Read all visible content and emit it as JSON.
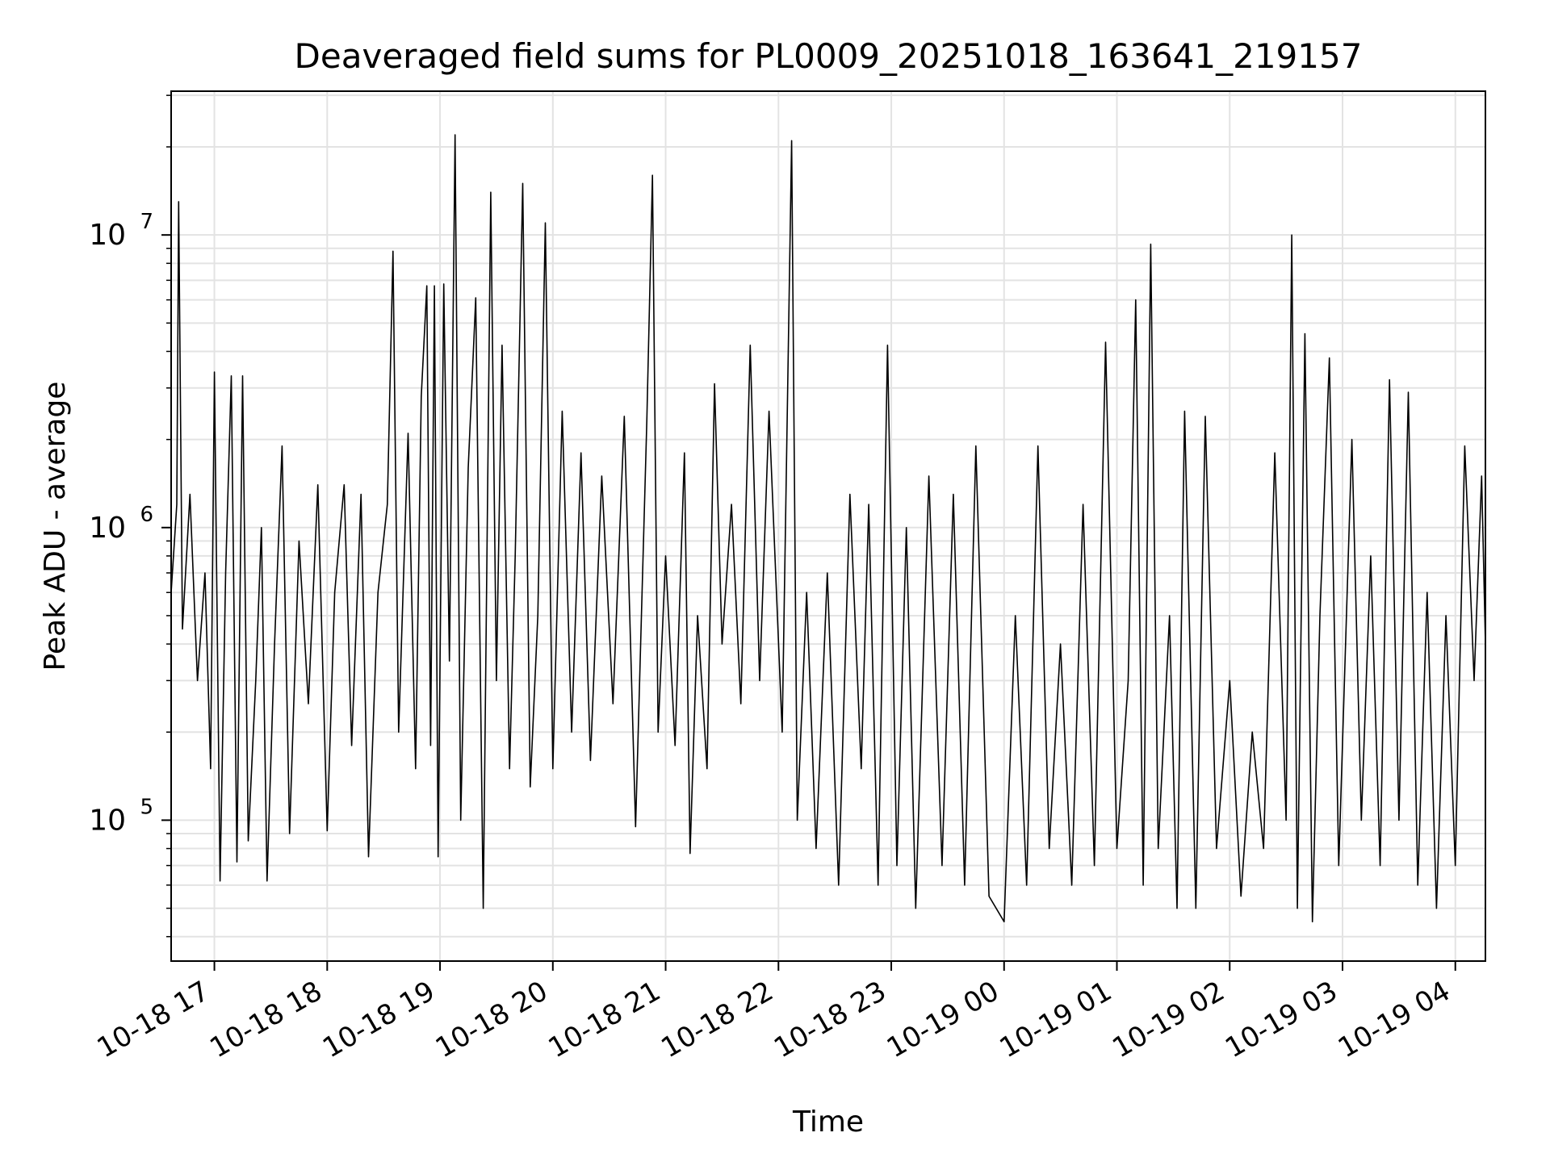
{
  "chart_data": {
    "type": "line",
    "title": "Deaveraged field sums for PL0009_20251018_163641_219157",
    "xlabel": "Time",
    "ylabel": "Peak ADU - average",
    "yscale": "log",
    "ylim": [
      33000,
      31000000
    ],
    "xlim": [
      "2025-10-18 16:37",
      "2025-10-19 04:16"
    ],
    "grid": true,
    "x_ticks": [
      {
        "time": "2025-10-18 17:00",
        "label": "10-18 17"
      },
      {
        "time": "2025-10-18 18:00",
        "label": "10-18 18"
      },
      {
        "time": "2025-10-18 19:00",
        "label": "10-18 19"
      },
      {
        "time": "2025-10-18 20:00",
        "label": "10-18 20"
      },
      {
        "time": "2025-10-18 21:00",
        "label": "10-18 21"
      },
      {
        "time": "2025-10-18 22:00",
        "label": "10-18 22"
      },
      {
        "time": "2025-10-18 23:00",
        "label": "10-18 23"
      },
      {
        "time": "2025-10-19 00:00",
        "label": "10-19 00"
      },
      {
        "time": "2025-10-19 01:00",
        "label": "10-19 01"
      },
      {
        "time": "2025-10-19 02:00",
        "label": "10-19 02"
      },
      {
        "time": "2025-10-19 03:00",
        "label": "10-19 03"
      },
      {
        "time": "2025-10-19 04:00",
        "label": "10-19 04"
      }
    ],
    "y_ticks": [
      {
        "value": 100000,
        "base": "10",
        "exp": "5"
      },
      {
        "value": 1000000,
        "base": "10",
        "exp": "6"
      },
      {
        "value": 10000000,
        "base": "10",
        "exp": "7"
      }
    ],
    "series": [
      {
        "color": "#000000",
        "points": [
          [
            "2025-10-18 16:37",
            600000
          ],
          [
            "2025-10-18 16:40",
            1200000
          ],
          [
            "2025-10-18 16:41",
            13000000
          ],
          [
            "2025-10-18 16:43",
            450000
          ],
          [
            "2025-10-18 16:47",
            1300000
          ],
          [
            "2025-10-18 16:51",
            300000
          ],
          [
            "2025-10-18 16:55",
            700000
          ],
          [
            "2025-10-18 16:58",
            150000
          ],
          [
            "2025-10-18 17:00",
            3400000
          ],
          [
            "2025-10-18 17:03",
            62000
          ],
          [
            "2025-10-18 17:06",
            700000
          ],
          [
            "2025-10-18 17:09",
            3300000
          ],
          [
            "2025-10-18 17:12",
            72000
          ],
          [
            "2025-10-18 17:15",
            3300000
          ],
          [
            "2025-10-18 17:18",
            85000
          ],
          [
            "2025-10-18 17:22",
            300000
          ],
          [
            "2025-10-18 17:25",
            1000000
          ],
          [
            "2025-10-18 17:28",
            62000
          ],
          [
            "2025-10-18 17:32",
            400000
          ],
          [
            "2025-10-18 17:36",
            1900000
          ],
          [
            "2025-10-18 17:40",
            90000
          ],
          [
            "2025-10-18 17:45",
            900000
          ],
          [
            "2025-10-18 17:50",
            250000
          ],
          [
            "2025-10-18 17:55",
            1400000
          ],
          [
            "2025-10-18 18:00",
            92000
          ],
          [
            "2025-10-18 18:04",
            600000
          ],
          [
            "2025-10-18 18:09",
            1400000
          ],
          [
            "2025-10-18 18:13",
            180000
          ],
          [
            "2025-10-18 18:18",
            1300000
          ],
          [
            "2025-10-18 18:22",
            75000
          ],
          [
            "2025-10-18 18:27",
            600000
          ],
          [
            "2025-10-18 18:32",
            1200000
          ],
          [
            "2025-10-18 18:35",
            8800000
          ],
          [
            "2025-10-18 18:38",
            200000
          ],
          [
            "2025-10-18 18:43",
            2100000
          ],
          [
            "2025-10-18 18:47",
            150000
          ],
          [
            "2025-10-18 18:50",
            2800000
          ],
          [
            "2025-10-18 18:53",
            6700000
          ],
          [
            "2025-10-18 18:55",
            180000
          ],
          [
            "2025-10-18 18:57",
            6700000
          ],
          [
            "2025-10-18 18:59",
            75000
          ],
          [
            "2025-10-18 19:02",
            6800000
          ],
          [
            "2025-10-18 19:05",
            350000
          ],
          [
            "2025-10-18 19:08",
            22000000
          ],
          [
            "2025-10-18 19:11",
            100000
          ],
          [
            "2025-10-18 19:15",
            1600000
          ],
          [
            "2025-10-18 19:19",
            6100000
          ],
          [
            "2025-10-18 19:23",
            50000
          ],
          [
            "2025-10-18 19:27",
            14000000
          ],
          [
            "2025-10-18 19:30",
            300000
          ],
          [
            "2025-10-18 19:33",
            4200000
          ],
          [
            "2025-10-18 19:37",
            150000
          ],
          [
            "2025-10-18 19:40",
            800000
          ],
          [
            "2025-10-18 19:44",
            15000000
          ],
          [
            "2025-10-18 19:48",
            130000
          ],
          [
            "2025-10-18 19:52",
            500000
          ],
          [
            "2025-10-18 19:56",
            11000000
          ],
          [
            "2025-10-18 20:00",
            150000
          ],
          [
            "2025-10-18 20:05",
            2500000
          ],
          [
            "2025-10-18 20:10",
            200000
          ],
          [
            "2025-10-18 20:15",
            1800000
          ],
          [
            "2025-10-18 20:20",
            160000
          ],
          [
            "2025-10-18 20:26",
            1500000
          ],
          [
            "2025-10-18 20:32",
            250000
          ],
          [
            "2025-10-18 20:38",
            2400000
          ],
          [
            "2025-10-18 20:44",
            95000
          ],
          [
            "2025-10-18 20:50",
            2300000
          ],
          [
            "2025-10-18 20:53",
            16000000
          ],
          [
            "2025-10-18 20:56",
            200000
          ],
          [
            "2025-10-18 21:00",
            800000
          ],
          [
            "2025-10-18 21:05",
            180000
          ],
          [
            "2025-10-18 21:10",
            1800000
          ],
          [
            "2025-10-18 21:13",
            77000
          ],
          [
            "2025-10-18 21:17",
            500000
          ],
          [
            "2025-10-18 21:22",
            150000
          ],
          [
            "2025-10-18 21:26",
            3100000
          ],
          [
            "2025-10-18 21:30",
            400000
          ],
          [
            "2025-10-18 21:35",
            1200000
          ],
          [
            "2025-10-18 21:40",
            250000
          ],
          [
            "2025-10-18 21:45",
            4200000
          ],
          [
            "2025-10-18 21:50",
            300000
          ],
          [
            "2025-10-18 21:55",
            2500000
          ],
          [
            "2025-10-18 22:02",
            200000
          ],
          [
            "2025-10-18 22:07",
            21000000
          ],
          [
            "2025-10-18 22:10",
            100000
          ],
          [
            "2025-10-18 22:15",
            600000
          ],
          [
            "2025-10-18 22:20",
            80000
          ],
          [
            "2025-10-18 22:26",
            700000
          ],
          [
            "2025-10-18 22:32",
            60000
          ],
          [
            "2025-10-18 22:38",
            1300000
          ],
          [
            "2025-10-18 22:44",
            150000
          ],
          [
            "2025-10-18 22:48",
            1200000
          ],
          [
            "2025-10-18 22:53",
            60000
          ],
          [
            "2025-10-18 22:58",
            4200000
          ],
          [
            "2025-10-18 23:03",
            70000
          ],
          [
            "2025-10-18 23:08",
            1000000
          ],
          [
            "2025-10-18 23:13",
            50000
          ],
          [
            "2025-10-18 23:20",
            1500000
          ],
          [
            "2025-10-18 23:27",
            70000
          ],
          [
            "2025-10-18 23:33",
            1300000
          ],
          [
            "2025-10-18 23:39",
            60000
          ],
          [
            "2025-10-18 23:45",
            1900000
          ],
          [
            "2025-10-18 23:52",
            55000
          ],
          [
            "2025-10-19 00:00",
            45000
          ],
          [
            "2025-10-19 00:06",
            500000
          ],
          [
            "2025-10-19 00:12",
            60000
          ],
          [
            "2025-10-19 00:18",
            1900000
          ],
          [
            "2025-10-19 00:24",
            80000
          ],
          [
            "2025-10-19 00:30",
            400000
          ],
          [
            "2025-10-19 00:36",
            60000
          ],
          [
            "2025-10-19 00:42",
            1200000
          ],
          [
            "2025-10-19 00:48",
            70000
          ],
          [
            "2025-10-19 00:54",
            4300000
          ],
          [
            "2025-10-19 01:00",
            80000
          ],
          [
            "2025-10-19 01:06",
            300000
          ],
          [
            "2025-10-19 01:10",
            6000000
          ],
          [
            "2025-10-19 01:14",
            60000
          ],
          [
            "2025-10-19 01:18",
            9300000
          ],
          [
            "2025-10-19 01:22",
            80000
          ],
          [
            "2025-10-19 01:28",
            500000
          ],
          [
            "2025-10-19 01:32",
            50000
          ],
          [
            "2025-10-19 01:36",
            2500000
          ],
          [
            "2025-10-19 01:42",
            50000
          ],
          [
            "2025-10-19 01:47",
            2400000
          ],
          [
            "2025-10-19 01:53",
            80000
          ],
          [
            "2025-10-19 02:00",
            300000
          ],
          [
            "2025-10-19 02:06",
            55000
          ],
          [
            "2025-10-19 02:12",
            200000
          ],
          [
            "2025-10-19 02:18",
            80000
          ],
          [
            "2025-10-19 02:24",
            1800000
          ],
          [
            "2025-10-19 02:30",
            100000
          ],
          [
            "2025-10-19 02:33",
            10000000
          ],
          [
            "2025-10-19 02:36",
            50000
          ],
          [
            "2025-10-19 02:40",
            4600000
          ],
          [
            "2025-10-19 02:44",
            45000
          ],
          [
            "2025-10-19 02:48",
            500000
          ],
          [
            "2025-10-19 02:53",
            3800000
          ],
          [
            "2025-10-19 02:58",
            70000
          ],
          [
            "2025-10-19 03:05",
            2000000
          ],
          [
            "2025-10-19 03:10",
            100000
          ],
          [
            "2025-10-19 03:15",
            800000
          ],
          [
            "2025-10-19 03:20",
            70000
          ],
          [
            "2025-10-19 03:25",
            3200000
          ],
          [
            "2025-10-19 03:30",
            100000
          ],
          [
            "2025-10-19 03:35",
            2900000
          ],
          [
            "2025-10-19 03:40",
            60000
          ],
          [
            "2025-10-19 03:45",
            600000
          ],
          [
            "2025-10-19 03:50",
            50000
          ],
          [
            "2025-10-19 03:55",
            500000
          ],
          [
            "2025-10-19 04:00",
            70000
          ],
          [
            "2025-10-19 04:05",
            1900000
          ],
          [
            "2025-10-19 04:10",
            300000
          ],
          [
            "2025-10-19 04:14",
            1500000
          ],
          [
            "2025-10-19 04:16",
            400000
          ]
        ]
      }
    ]
  }
}
